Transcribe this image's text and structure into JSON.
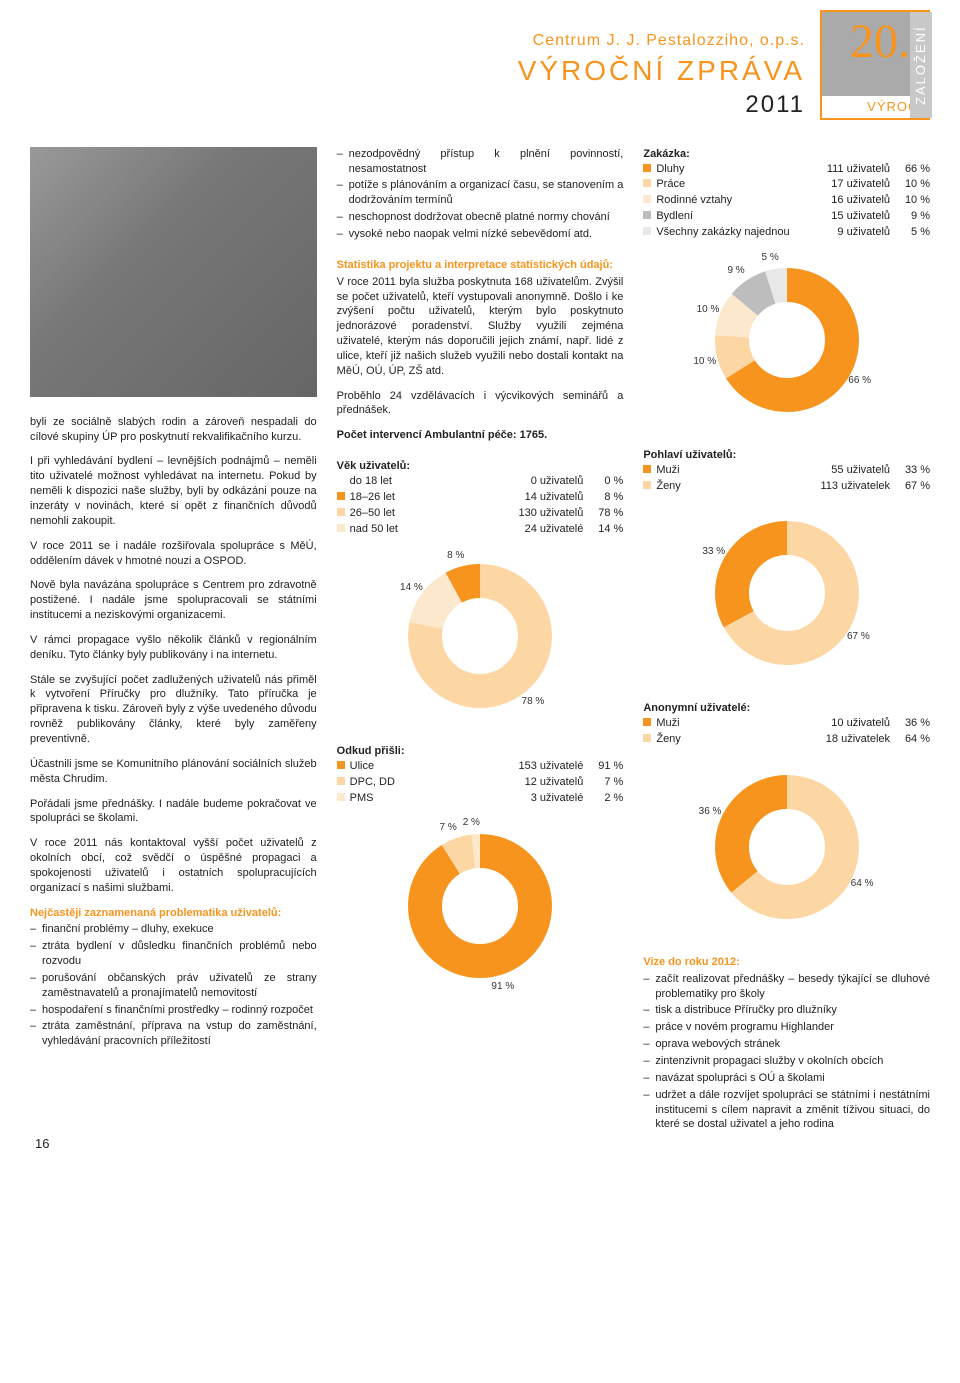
{
  "header": {
    "org": "Centrum J. J. Pestalozziho, o.p.s.",
    "title": "VÝROČNÍ ZPRÁVA",
    "year": "2011",
    "badge_num": "20.",
    "badge_label": "VÝROČÍ",
    "badge_side": "ZALOŽENÍ"
  },
  "colors": {
    "orange": "#f7941e",
    "orange_light": "#fdd7a3",
    "orange_lighter": "#fce8cd",
    "gray": "#bdbdbd",
    "text": "#222222"
  },
  "col1": {
    "paragraph1": "byli ze sociálně slabých rodin a zároveň nespadali do cílové skupiny ÚP pro poskytnutí rekvalifikačního kurzu.",
    "paragraph2": "I při vyhledávání bydlení – levnějších podnájmů – neměli tito uživatelé možnost vyhledávat na internetu. Pokud by neměli k dispozici naše služby, byli by odkázáni pouze na inzeráty v novinách, které si opět z finančních důvodů nemohli zakoupit.",
    "paragraph3": "V roce 2011 se i nadále rozšiřovala spolupráce s MěÚ, oddělením dávek v hmotné nouzi a OSPOD.",
    "paragraph4": "Nově byla navázána spolupráce s Centrem pro zdravotně postižené. I nadále jsme spolupracovali se státními institucemi a neziskovými organizacemi.",
    "paragraph5": "V rámci propagace vyšlo několik článků v regionálním deníku. Tyto články byly publikovány i na internetu.",
    "paragraph6": "Stále se zvyšující počet zadlužených uživatelů nás přiměl k vytvoření Příručky pro dlužníky. Tato příručka je připravena k tisku. Zároveň byly z výše uvedeného důvodu rovněž publikovány články, které byly zaměřeny preventivně.",
    "paragraph7": "Účastnili jsme se Komunitního plánování sociálních služeb města Chrudim.",
    "paragraph8": "Pořádali jsme přednášky. I nadále budeme pokračovat ve spolupráci se školami.",
    "paragraph9": "V roce 2011 nás kontaktoval vyšší počet uživatelů z okolních obcí, což svědčí o úspěšné propagaci a spokojenosti uživatelů i ostatních spolupracujících organizací s našimi službami.",
    "problems_heading": "Nejčastěji zaznamenaná problematika uživatelů:",
    "problems": [
      "finanční problémy – dluhy, exekuce",
      "ztráta bydlení v důsledku finančních problémů nebo rozvodu",
      "porušování občanských práv uživatelů ze strany zaměstnavatelů a pronajímatelů nemovitostí",
      "hospodaření s finančními prostředky – rodinný rozpočet",
      "ztráta zaměstnání, příprava na vstup do zaměstnání, vyhledávání pracovních příležitostí"
    ]
  },
  "col2": {
    "top_list": [
      "nezodpovědný přístup k plnění povinností, nesamostatnost",
      "potíže s plánováním a organizací času, se stanovením a dodržováním termínů",
      "neschopnost dodržovat obecně platné normy chování",
      "vysoké nebo naopak velmi nízké sebevědomí atd."
    ],
    "stats_heading": "Statistika projektu a interpretace statistických údajů:",
    "stats_text": "V roce 2011 byla služba poskytnuta 168 uživatelům. Zvýšil se počet uživatelů, kteří vystupovali anonymně. Došlo i ke zvýšení počtu uživatelů, kterým bylo poskytnuto jednorázové poradenství. Služby využili zejména uživatelé, kterým nás doporučili jejich známí, např. lidé z ulice, kteří již našich služeb využili nebo dostali kontakt na MěÚ, OÚ, ÚP, ZŠ atd.",
    "stats_text2": "Proběhlo 24 vzdělávacích i výcvikových seminářů a přednášek.",
    "stats_bold": "Počet intervencí Ambulantní péče: 1765.",
    "age_heading": "Věk uživatelů:",
    "age": [
      {
        "label": "do 18 let",
        "v1": "0 uživatelů",
        "v2": "0 %",
        "color": ""
      },
      {
        "label": "18–26 let",
        "v1": "14 uživatelů",
        "v2": "8 %",
        "color": "#f7941e"
      },
      {
        "label": "26–50 let",
        "v1": "130 uživatelů",
        "v2": "78 %",
        "color": "#fdd7a3"
      },
      {
        "label": "nad 50 let",
        "v1": "24 uživatelé",
        "v2": "14 %",
        "color": "#fce8cd"
      }
    ],
    "age_chart": {
      "segments": [
        {
          "value": 78,
          "color": "#fdd7a3",
          "label": "78 %"
        },
        {
          "value": 14,
          "color": "#fce8cd",
          "label": "14 %"
        },
        {
          "value": 8,
          "color": "#f7941e",
          "label": "8 %"
        }
      ]
    },
    "from_heading": "Odkud přišli:",
    "from": [
      {
        "label": "Ulice",
        "v1": "153 uživatelé",
        "v2": "91 %",
        "color": "#f7941e"
      },
      {
        "label": "DPC, DD",
        "v1": "12 uživatelů",
        "v2": "7 %",
        "color": "#fdd7a3"
      },
      {
        "label": "PMS",
        "v1": "3 uživatelé",
        "v2": "2 %",
        "color": "#fce8cd"
      }
    ],
    "from_chart": {
      "segments": [
        {
          "value": 91,
          "color": "#f7941e",
          "label": "91 %"
        },
        {
          "value": 7,
          "color": "#fdd7a3",
          "label": "7 %"
        },
        {
          "value": 2,
          "color": "#fce8cd",
          "label": "2 %"
        }
      ]
    }
  },
  "col3": {
    "zak_heading": "Zakázka:",
    "zak": [
      {
        "label": "Dluhy",
        "v1": "111 uživatelů",
        "v2": "66 %",
        "color": "#f7941e"
      },
      {
        "label": "Práce",
        "v1": "17 uživatelů",
        "v2": "10 %",
        "color": "#fdd7a3"
      },
      {
        "label": "Rodinné vztahy",
        "v1": "16 uživatelů",
        "v2": "10 %",
        "color": "#fce8cd"
      },
      {
        "label": "Bydlení",
        "v1": "15 uživatelů",
        "v2": "9 %",
        "color": "#bdbdbd"
      },
      {
        "label": "Všechny zakázky najednou",
        "v1": "9 uživatelů",
        "v2": "5 %",
        "color": "#e8e8e8"
      }
    ],
    "zak_chart": {
      "segments": [
        {
          "value": 66,
          "color": "#f7941e",
          "label": "66 %"
        },
        {
          "value": 10,
          "color": "#fdd7a3",
          "label": "10 %"
        },
        {
          "value": 10,
          "color": "#fce8cd",
          "label": "10 %"
        },
        {
          "value": 9,
          "color": "#bdbdbd",
          "label": "9 %"
        },
        {
          "value": 5,
          "color": "#e8e8e8",
          "label": "5 %"
        }
      ]
    },
    "sex_heading": "Pohlaví uživatelů:",
    "sex": [
      {
        "label": "Muži",
        "v1": "55 uživatelů",
        "v2": "33 %",
        "color": "#f7941e"
      },
      {
        "label": "Ženy",
        "v1": "113 uživatelek",
        "v2": "67 %",
        "color": "#fdd7a3"
      }
    ],
    "sex_chart": {
      "segments": [
        {
          "value": 67,
          "color": "#fdd7a3",
          "label": "67 %"
        },
        {
          "value": 33,
          "color": "#f7941e",
          "label": "33 %"
        }
      ]
    },
    "anon_heading": "Anonymní uživatelé:",
    "anon": [
      {
        "label": "Muži",
        "v1": "10 uživatelů",
        "v2": "36 %",
        "color": "#f7941e"
      },
      {
        "label": "Ženy",
        "v1": "18 uživatelek",
        "v2": "64 %",
        "color": "#fdd7a3"
      }
    ],
    "anon_chart": {
      "segments": [
        {
          "value": 64,
          "color": "#fdd7a3",
          "label": "64 %"
        },
        {
          "value": 36,
          "color": "#f7941e",
          "label": "36 %"
        }
      ]
    },
    "vision_heading": "Vize do roku 2012:",
    "vision": [
      "začít realizovat přednášky – besedy týkající se dluhové problematiky pro školy",
      "tisk a distribuce Příručky pro dlužníky",
      "práce v novém programu Highlander",
      "oprava webových stránek",
      "zintenzivnit propagaci služby v okolních obcích",
      "navázat spolupráci s OÚ a školami",
      "udržet a dále rozvíjet spolupráci se státními i nestátními institucemi s cílem napravit a změnit tíživou situaci, do které se dostal uživatel a jeho rodina"
    ]
  },
  "page_number": "16"
}
